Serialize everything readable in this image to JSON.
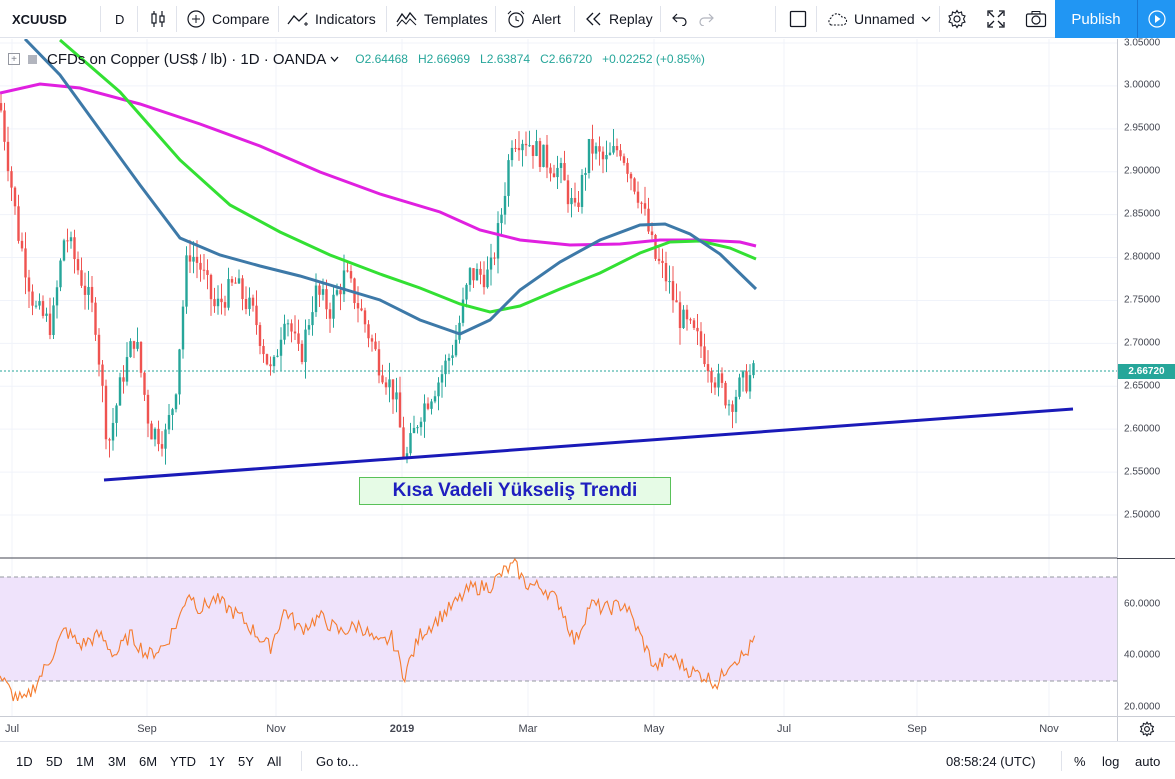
{
  "toolbar": {
    "symbol": "XCUUSD",
    "interval": "D",
    "compare": "Compare",
    "indicators": "Indicators",
    "templates": "Templates",
    "alert": "Alert",
    "replay": "Replay",
    "layout_name": "Unnamed",
    "publish": "Publish"
  },
  "legend": {
    "toggle": "+",
    "title": "CFDs on Copper (US$ / lb) · 1D · OANDA",
    "open": "O2.64468",
    "high": "H2.66969",
    "low": "L2.63874",
    "close": "C2.66720",
    "change": "+0.02252 (+0.85%)"
  },
  "price_axis": {
    "labels": [
      "3.05000",
      "3.00000",
      "2.95000",
      "2.90000",
      "2.85000",
      "2.80000",
      "2.75000",
      "2.70000",
      "2.65000",
      "2.60000",
      "2.55000",
      "2.50000"
    ],
    "last_price": "2.66720"
  },
  "rsi_axis": {
    "labels": [
      "60.0000",
      "40.0000",
      "20.0000"
    ]
  },
  "time_axis": {
    "labels": [
      "Jul",
      "Sep",
      "Nov",
      "2019",
      "Mar",
      "May",
      "Jul",
      "Sep",
      "Nov"
    ]
  },
  "annotation": {
    "text": "Kısa Vadeli Yükseliş Trendi"
  },
  "bottombar": {
    "ranges": [
      "1D",
      "5D",
      "1M",
      "3M",
      "6M",
      "YTD",
      "1Y",
      "5Y",
      "All"
    ],
    "goto": "Go to...",
    "clock": "08:58:24 (UTC)",
    "percent": "%",
    "log": "log",
    "auto": "auto"
  },
  "colors": {
    "up": "#26a69a",
    "down": "#ef5350",
    "ma_short": "#3d79a8",
    "ma_mid": "#33e033",
    "ma_long": "#e020e0",
    "trendline": "#1a1ab8",
    "rsi": "#f57c2f",
    "rsi_band": "#efe3fb"
  }
}
